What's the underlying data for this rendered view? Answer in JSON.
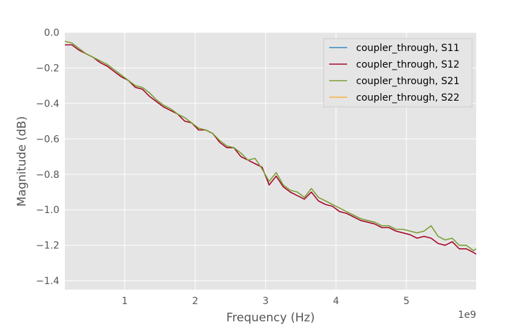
{
  "chart_data": {
    "type": "line",
    "title": "",
    "xlabel": "Frequency (Hz)",
    "ylabel": "Magnitude (dB)",
    "x_offset_label": "1e9",
    "xlim": [
      0.15,
      5.99
    ],
    "ylim": [
      -1.45,
      0.0
    ],
    "x_ticks": [
      1,
      2,
      3,
      4,
      5
    ],
    "x_tick_labels": [
      "1",
      "2",
      "3",
      "4",
      "5"
    ],
    "y_ticks": [
      0.0,
      -0.2,
      -0.4,
      -0.6,
      -0.8,
      -1.0,
      -1.2,
      -1.4
    ],
    "y_tick_labels": [
      "0.0",
      "−0.2",
      "−0.4",
      "−0.6",
      "−0.8",
      "−1.0",
      "−1.2",
      "−1.4"
    ],
    "grid": true,
    "legend_position": "top-right",
    "legend": [
      "coupler_through, S11",
      "coupler_through, S12",
      "coupler_through, S21",
      "coupler_through, S22"
    ],
    "colors": {
      "S11": "#348abd",
      "S12": "#a60628",
      "S21": "#7a9e32",
      "S22": "#fbb03b"
    },
    "x": [
      0.15,
      0.25,
      0.35,
      0.45,
      0.55,
      0.65,
      0.75,
      0.85,
      0.95,
      1.05,
      1.15,
      1.25,
      1.35,
      1.45,
      1.55,
      1.65,
      1.75,
      1.85,
      1.95,
      2.05,
      2.15,
      2.25,
      2.35,
      2.45,
      2.55,
      2.65,
      2.75,
      2.85,
      2.95,
      3.05,
      3.15,
      3.25,
      3.35,
      3.45,
      3.55,
      3.65,
      3.75,
      3.85,
      3.95,
      4.05,
      4.15,
      4.25,
      4.35,
      4.45,
      4.55,
      4.65,
      4.75,
      4.85,
      4.95,
      5.05,
      5.15,
      5.25,
      5.35,
      5.45,
      5.55,
      5.65,
      5.75,
      5.85,
      5.95,
      5.99
    ],
    "series": [
      {
        "name": "coupler_through, S12",
        "values": [
          -0.07,
          -0.07,
          -0.1,
          -0.12,
          -0.14,
          -0.17,
          -0.19,
          -0.22,
          -0.25,
          -0.27,
          -0.31,
          -0.32,
          -0.36,
          -0.39,
          -0.42,
          -0.44,
          -0.46,
          -0.5,
          -0.51,
          -0.55,
          -0.55,
          -0.57,
          -0.62,
          -0.65,
          -0.65,
          -0.7,
          -0.72,
          -0.74,
          -0.76,
          -0.86,
          -0.81,
          -0.87,
          -0.9,
          -0.92,
          -0.94,
          -0.9,
          -0.95,
          -0.97,
          -0.98,
          -1.01,
          -1.02,
          -1.04,
          -1.06,
          -1.07,
          -1.08,
          -1.1,
          -1.1,
          -1.12,
          -1.13,
          -1.14,
          -1.16,
          -1.15,
          -1.16,
          -1.19,
          -1.2,
          -1.18,
          -1.22,
          -1.22,
          -1.24,
          -1.25
        ]
      },
      {
        "name": "coupler_through, S21",
        "values": [
          -0.05,
          -0.06,
          -0.09,
          -0.12,
          -0.14,
          -0.16,
          -0.18,
          -0.21,
          -0.24,
          -0.27,
          -0.3,
          -0.31,
          -0.34,
          -0.38,
          -0.41,
          -0.43,
          -0.46,
          -0.48,
          -0.51,
          -0.54,
          -0.55,
          -0.57,
          -0.61,
          -0.64,
          -0.65,
          -0.68,
          -0.72,
          -0.71,
          -0.77,
          -0.84,
          -0.79,
          -0.86,
          -0.89,
          -0.9,
          -0.93,
          -0.88,
          -0.93,
          -0.95,
          -0.97,
          -0.99,
          -1.01,
          -1.03,
          -1.05,
          -1.06,
          -1.07,
          -1.09,
          -1.09,
          -1.11,
          -1.11,
          -1.12,
          -1.13,
          -1.12,
          -1.09,
          -1.15,
          -1.17,
          -1.16,
          -1.2,
          -1.2,
          -1.23,
          -1.22
        ]
      }
    ]
  }
}
